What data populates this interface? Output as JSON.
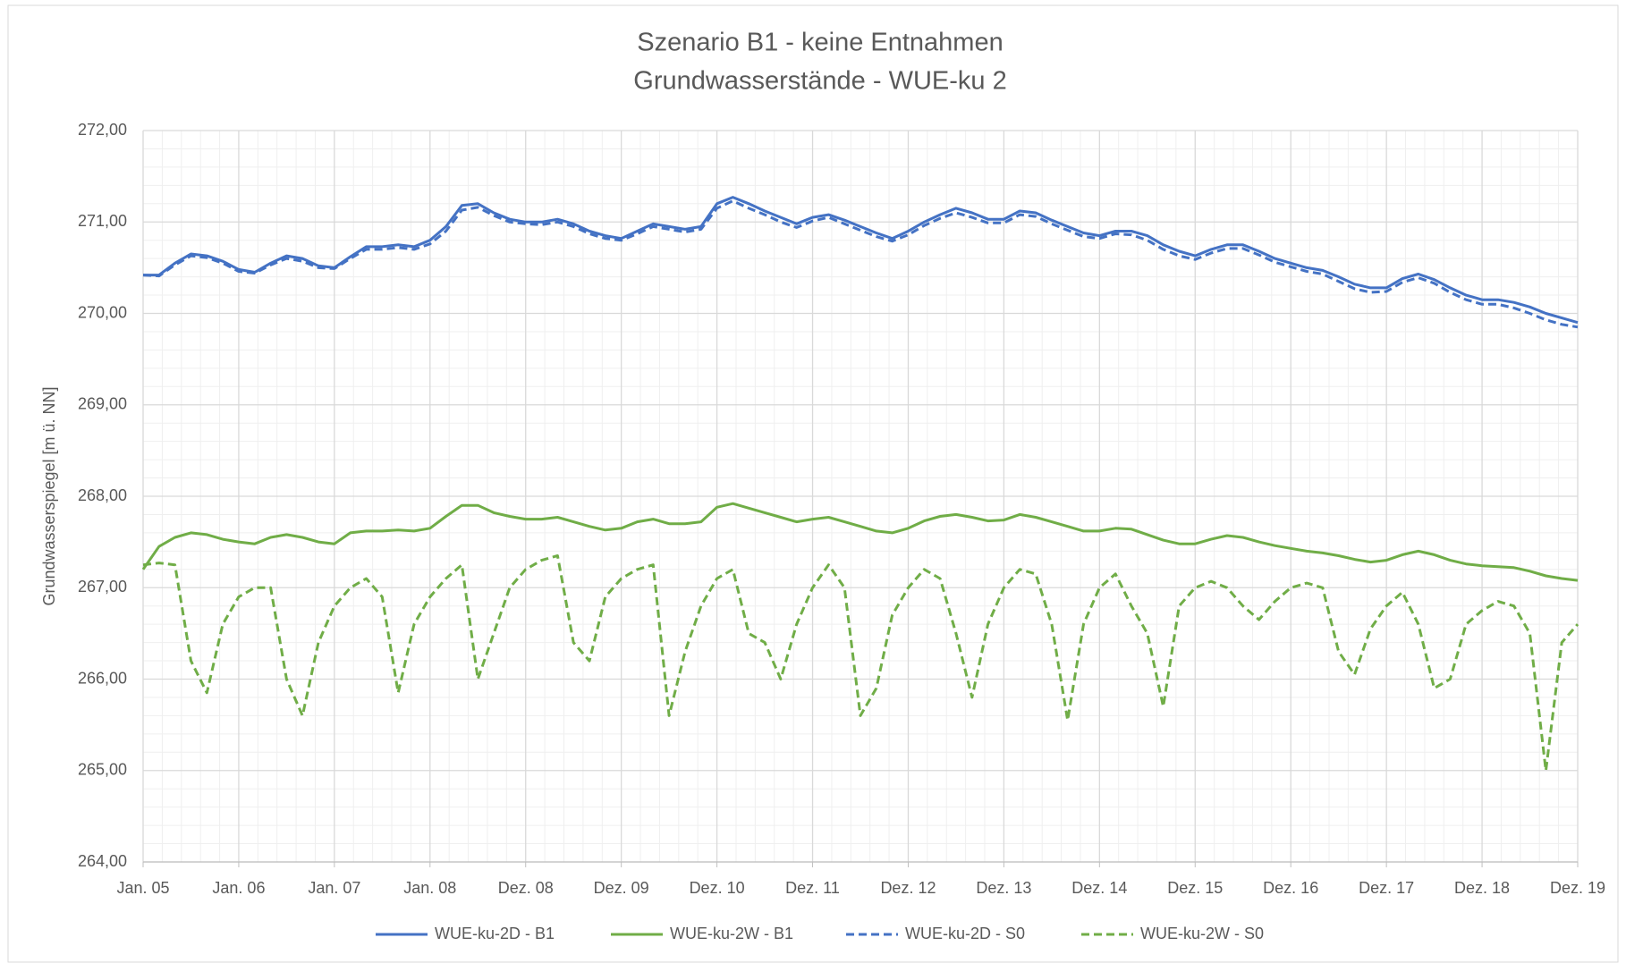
{
  "chart_data": {
    "type": "line",
    "title": "Szenario B1 - keine Entnahmen",
    "subtitle": "Grundwasserstände - WUE-ku 2",
    "y_label": "Grundwasserspiegel [m ü. NN]",
    "categories": [
      "Jan. 05",
      null,
      null,
      null,
      null,
      null,
      "Jan. 06",
      null,
      null,
      null,
      null,
      null,
      "Jan. 07",
      null,
      null,
      null,
      null,
      null,
      "Jan. 08",
      null,
      null,
      null,
      null,
      null,
      "Dez. 08",
      null,
      null,
      null,
      null,
      null,
      "Dez. 09",
      null,
      null,
      null,
      null,
      null,
      "Dez. 10",
      null,
      null,
      null,
      null,
      null,
      "Dez. 11",
      null,
      null,
      null,
      null,
      null,
      "Dez. 12",
      null,
      null,
      null,
      null,
      null,
      "Dez. 13",
      null,
      null,
      null,
      null,
      null,
      "Dez. 14",
      null,
      null,
      null,
      null,
      null,
      "Dez. 15",
      null,
      null,
      null,
      null,
      null,
      "Dez. 16",
      null,
      null,
      null,
      null,
      null,
      "Dez. 17",
      null,
      null,
      null,
      null,
      null,
      "Dez. 18",
      null,
      null,
      null,
      null,
      null,
      "Dez. 19"
    ],
    "series": [
      {
        "name": "WUE-ku-2D - B1",
        "color": "#4472c4",
        "dashed": false,
        "values": [
          270.42,
          270.42,
          270.55,
          270.65,
          270.63,
          270.57,
          270.48,
          270.45,
          270.55,
          270.63,
          270.6,
          270.52,
          270.5,
          270.62,
          270.73,
          270.73,
          270.75,
          270.73,
          270.8,
          270.95,
          271.18,
          271.2,
          271.1,
          271.03,
          271.0,
          271.0,
          271.03,
          270.98,
          270.9,
          270.85,
          270.82,
          270.9,
          270.98,
          270.95,
          270.92,
          270.95,
          271.2,
          271.27,
          271.2,
          271.12,
          271.05,
          270.98,
          271.05,
          271.08,
          271.02,
          270.95,
          270.88,
          270.82,
          270.9,
          271.0,
          271.08,
          271.15,
          271.1,
          271.03,
          271.03,
          271.12,
          271.1,
          271.02,
          270.95,
          270.88,
          270.85,
          270.9,
          270.9,
          270.85,
          270.75,
          270.68,
          270.63,
          270.7,
          270.75,
          270.75,
          270.68,
          270.6,
          270.55,
          270.5,
          270.47,
          270.4,
          270.32,
          270.28,
          270.28,
          270.38,
          270.43,
          270.37,
          270.28,
          270.2,
          270.15,
          270.15,
          270.12,
          270.07,
          270.0,
          269.95,
          269.9
        ]
      },
      {
        "name": "WUE-ku-2W - B1",
        "color": "#70ad47",
        "dashed": false,
        "values": [
          267.2,
          267.45,
          267.55,
          267.6,
          267.58,
          267.53,
          267.5,
          267.48,
          267.55,
          267.58,
          267.55,
          267.5,
          267.48,
          267.6,
          267.62,
          267.62,
          267.63,
          267.62,
          267.65,
          267.78,
          267.9,
          267.9,
          267.82,
          267.78,
          267.75,
          267.75,
          267.77,
          267.72,
          267.67,
          267.63,
          267.65,
          267.72,
          267.75,
          267.7,
          267.7,
          267.72,
          267.88,
          267.92,
          267.87,
          267.82,
          267.77,
          267.72,
          267.75,
          267.77,
          267.72,
          267.67,
          267.62,
          267.6,
          267.65,
          267.73,
          267.78,
          267.8,
          267.77,
          267.73,
          267.74,
          267.8,
          267.77,
          267.72,
          267.67,
          267.62,
          267.62,
          267.65,
          267.64,
          267.58,
          267.52,
          267.48,
          267.48,
          267.53,
          267.57,
          267.55,
          267.5,
          267.46,
          267.43,
          267.4,
          267.38,
          267.35,
          267.31,
          267.28,
          267.3,
          267.36,
          267.4,
          267.36,
          267.3,
          267.26,
          267.24,
          267.23,
          267.22,
          267.18,
          267.13,
          267.1,
          267.08
        ]
      },
      {
        "name": "WUE-ku-2D - S0",
        "color": "#4472c4",
        "dashed": true,
        "values": [
          270.42,
          270.41,
          270.53,
          270.63,
          270.61,
          270.55,
          270.46,
          270.44,
          270.53,
          270.6,
          270.57,
          270.5,
          270.49,
          270.6,
          270.7,
          270.7,
          270.72,
          270.7,
          270.76,
          270.9,
          271.13,
          271.16,
          271.07,
          271.0,
          270.98,
          270.97,
          271.0,
          270.95,
          270.87,
          270.82,
          270.8,
          270.87,
          270.95,
          270.92,
          270.89,
          270.92,
          271.15,
          271.23,
          271.15,
          271.08,
          271.0,
          270.94,
          271.01,
          271.05,
          270.98,
          270.91,
          270.84,
          270.79,
          270.86,
          270.96,
          271.04,
          271.1,
          271.05,
          270.99,
          270.99,
          271.08,
          271.06,
          270.98,
          270.91,
          270.84,
          270.82,
          270.87,
          270.86,
          270.8,
          270.7,
          270.63,
          270.59,
          270.66,
          270.71,
          270.71,
          270.64,
          270.56,
          270.51,
          270.46,
          270.43,
          270.35,
          270.27,
          270.23,
          270.24,
          270.34,
          270.39,
          270.33,
          270.23,
          270.15,
          270.1,
          270.1,
          270.06,
          270.0,
          269.93,
          269.88,
          269.85
        ]
      },
      {
        "name": "WUE-ku-2W - S0",
        "color": "#70ad47",
        "dashed": true,
        "values": [
          267.25,
          267.27,
          267.25,
          266.2,
          265.85,
          266.6,
          266.9,
          267.0,
          267.0,
          266.0,
          265.6,
          266.4,
          266.8,
          267.0,
          267.1,
          266.9,
          265.85,
          266.6,
          266.9,
          267.1,
          267.25,
          266.0,
          266.5,
          267.0,
          267.2,
          267.3,
          267.35,
          266.4,
          266.2,
          266.9,
          267.1,
          267.2,
          267.25,
          265.6,
          266.3,
          266.8,
          267.1,
          267.2,
          266.5,
          266.4,
          266.0,
          266.6,
          267.0,
          267.25,
          267.0,
          265.6,
          265.9,
          266.7,
          267.0,
          267.2,
          267.1,
          266.5,
          265.8,
          266.6,
          267.0,
          267.2,
          267.15,
          266.6,
          265.55,
          266.6,
          267.0,
          267.15,
          266.8,
          266.5,
          265.7,
          266.8,
          267.0,
          267.07,
          267.0,
          266.8,
          266.65,
          266.85,
          267.0,
          267.05,
          267.0,
          266.3,
          266.05,
          266.55,
          266.8,
          266.95,
          266.6,
          265.9,
          266.0,
          266.6,
          266.75,
          266.85,
          266.8,
          266.5,
          265.0,
          266.4,
          266.6
        ]
      }
    ],
    "ylim": [
      264,
      272
    ],
    "yticks": [
      {
        "value": 264,
        "label": "264,00"
      },
      {
        "value": 265,
        "label": "265,00"
      },
      {
        "value": 266,
        "label": "266,00"
      },
      {
        "value": 267,
        "label": "267,00"
      },
      {
        "value": 268,
        "label": "268,00"
      },
      {
        "value": 269,
        "label": "269,00"
      },
      {
        "value": 270,
        "label": "270,00"
      },
      {
        "value": 271,
        "label": "271,00"
      },
      {
        "value": 272,
        "label": "272,00"
      }
    ],
    "grid": true,
    "minor_grid": true,
    "legend": "bottom"
  }
}
